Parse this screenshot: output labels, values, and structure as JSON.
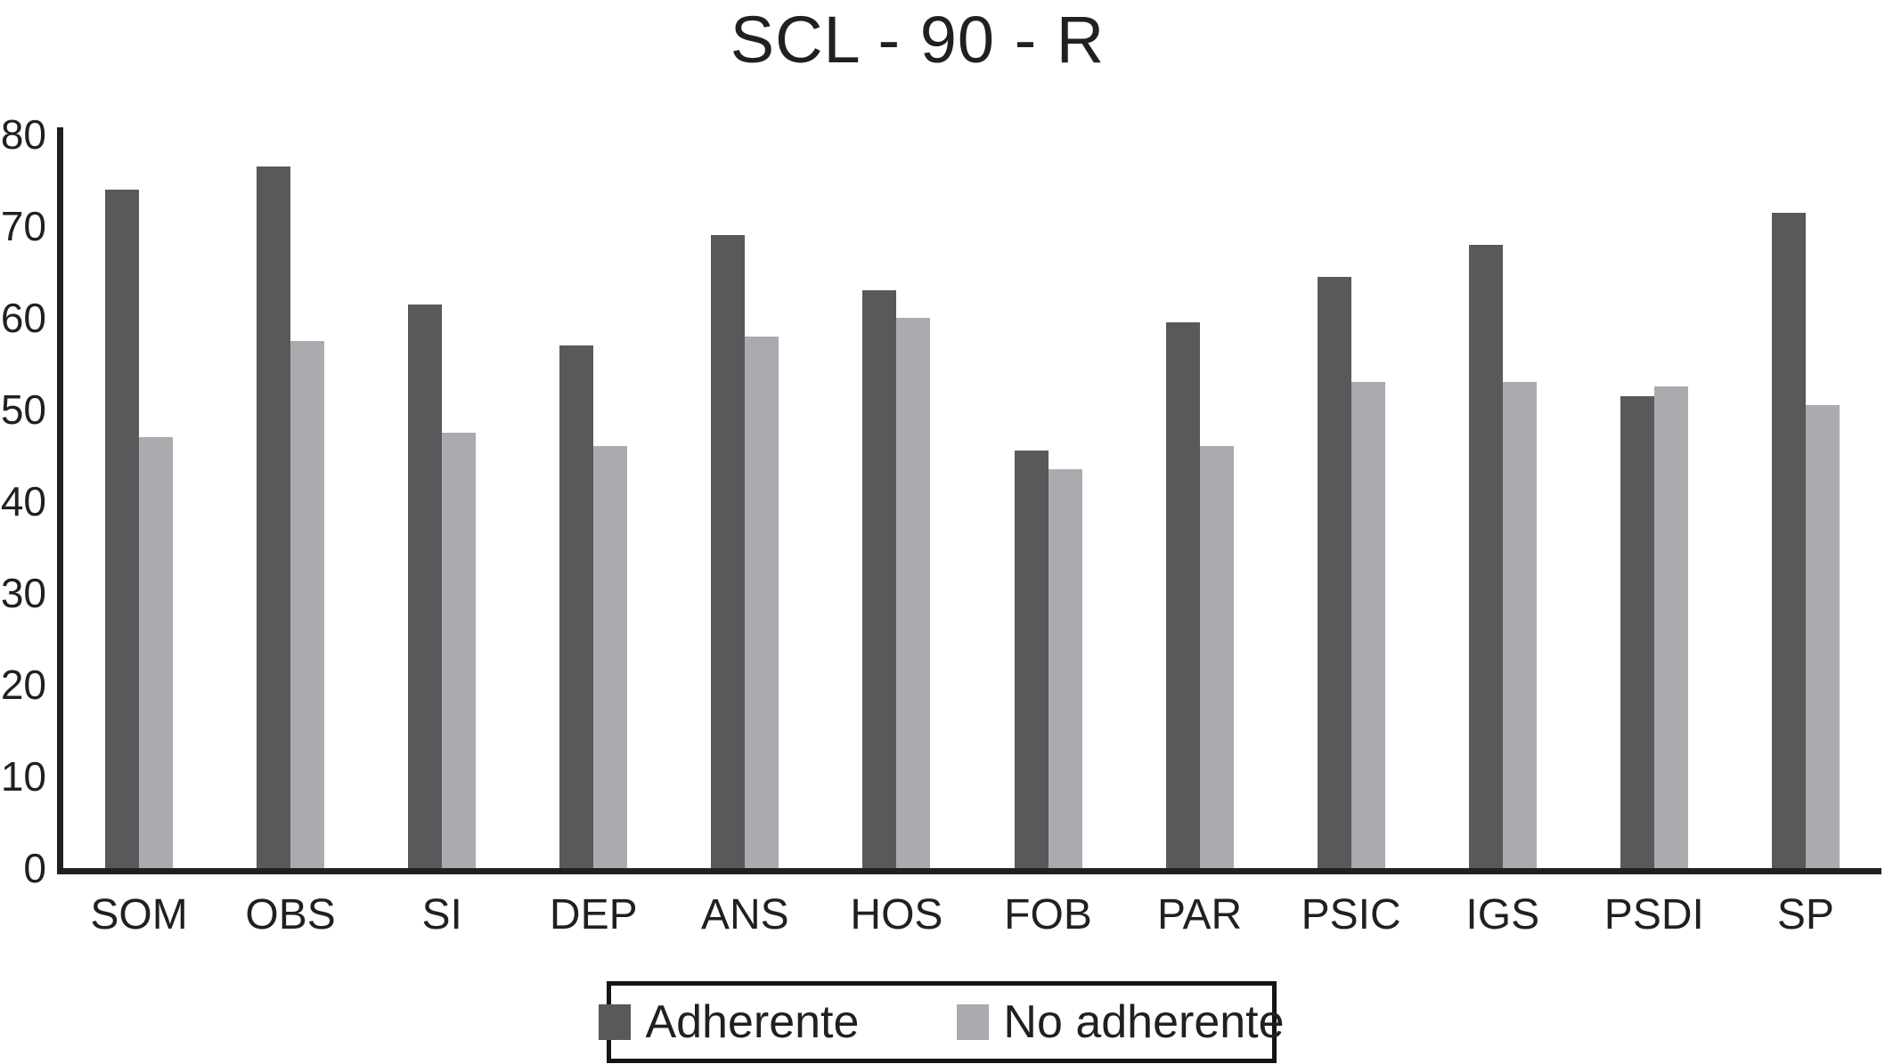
{
  "title": "SCL - 90 - R",
  "chart_data": {
    "type": "bar",
    "title": "SCL - 90 - R",
    "categories": [
      "SOM",
      "OBS",
      "SI",
      "DEP",
      "ANS",
      "HOS",
      "FOB",
      "PAR",
      "PSIC",
      "IGS",
      "PSDI",
      "SP"
    ],
    "series": [
      {
        "name": "Adherente",
        "color": "#58595b",
        "values": [
          74,
          76.5,
          61.5,
          57,
          69,
          63,
          45.5,
          59.5,
          64.5,
          68,
          51.5,
          71.5
        ]
      },
      {
        "name": "No adherente",
        "color": "#a9abae",
        "values": [
          47,
          57.5,
          47.5,
          46,
          58,
          60,
          43.5,
          46,
          53,
          53,
          52.5,
          50.5
        ]
      }
    ],
    "xlabel": "",
    "ylabel": "",
    "ylim": [
      0,
      80
    ],
    "yticks": [
      0,
      10,
      20,
      30,
      40,
      50,
      60,
      70,
      80
    ],
    "grid": false,
    "legend_position": "bottom"
  },
  "legend": {
    "items": [
      {
        "label": "Adherente",
        "color": "#58595b"
      },
      {
        "label": "No adherente",
        "color": "#a9abae"
      }
    ]
  }
}
